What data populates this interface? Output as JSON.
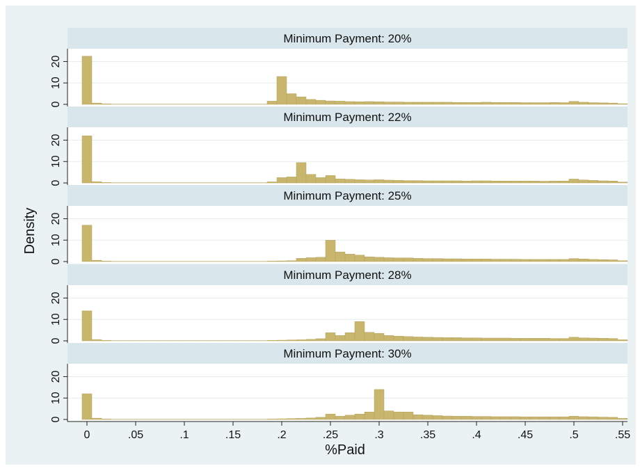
{
  "colors": {
    "outer_background": "#ffffff",
    "plot_region": "#eaf2f3",
    "panel_background": "#ffffff",
    "strip_background": "#d9e6eb",
    "bar_fill": "#c8b56e",
    "bar_stroke": "#b5a45e",
    "gridline": "#e6eded",
    "axis": "#222222",
    "text": "#111111"
  },
  "chart_data": {
    "type": "bar",
    "chart_subtype": "faceted histogram",
    "xlabel": "%Paid",
    "ylabel": "Density",
    "xlim": [
      -0.02,
      0.555
    ],
    "xticks": [
      0,
      0.05,
      0.1,
      0.15,
      0.2,
      0.25,
      0.3,
      0.35,
      0.4,
      0.45,
      0.5,
      0.55
    ],
    "xtick_labels": [
      "0",
      ".05",
      ".1",
      ".15",
      ".2",
      ".25",
      ".3",
      ".35",
      ".4",
      ".45",
      ".5",
      ".55"
    ],
    "ylim": [
      0,
      26
    ],
    "yticks": [
      0,
      10,
      20
    ],
    "ytick_labels": [
      "0",
      "10",
      "20"
    ],
    "grid": true,
    "bin_width": 0.01,
    "bin_start": -0.005,
    "panels": [
      {
        "label": "Minimum Payment: 20%",
        "values": [
          22.5,
          0.6,
          0.2,
          0.1,
          0.1,
          0.1,
          0.1,
          0.1,
          0.1,
          0.1,
          0.1,
          0.1,
          0.1,
          0.1,
          0.1,
          0.1,
          0.1,
          0.1,
          0.1,
          1.5,
          13.0,
          5.0,
          3.5,
          2.3,
          1.9,
          1.6,
          1.5,
          1.3,
          1.2,
          1.3,
          1.2,
          1.1,
          1.1,
          1.0,
          1.0,
          1.0,
          1.0,
          1.0,
          0.9,
          0.9,
          0.9,
          1.0,
          0.9,
          0.9,
          0.9,
          0.8,
          0.8,
          0.8,
          0.9,
          0.8,
          1.4,
          1.0,
          0.8,
          0.7,
          0.6,
          0.3
        ]
      },
      {
        "label": "Minimum Payment: 22%",
        "values": [
          22.0,
          0.6,
          0.2,
          0.1,
          0.1,
          0.1,
          0.1,
          0.1,
          0.1,
          0.1,
          0.1,
          0.1,
          0.1,
          0.1,
          0.1,
          0.1,
          0.1,
          0.1,
          0.1,
          0.5,
          2.5,
          2.8,
          9.5,
          4.0,
          2.5,
          3.5,
          1.9,
          1.7,
          1.5,
          1.4,
          1.5,
          1.3,
          1.2,
          1.1,
          1.1,
          1.0,
          1.0,
          1.0,
          1.0,
          0.9,
          1.0,
          1.0,
          0.9,
          0.9,
          0.9,
          0.9,
          0.9,
          0.8,
          0.9,
          0.9,
          1.8,
          1.4,
          1.2,
          1.0,
          0.9,
          0.4
        ]
      },
      {
        "label": "Minimum Payment: 25%",
        "values": [
          17.0,
          0.6,
          0.2,
          0.1,
          0.1,
          0.1,
          0.1,
          0.1,
          0.1,
          0.1,
          0.1,
          0.1,
          0.1,
          0.1,
          0.1,
          0.1,
          0.1,
          0.1,
          0.1,
          0.2,
          0.3,
          0.4,
          1.5,
          1.8,
          2.0,
          10.0,
          4.5,
          3.5,
          3.0,
          2.2,
          2.0,
          1.8,
          1.7,
          1.7,
          1.5,
          1.4,
          1.4,
          1.3,
          1.3,
          1.2,
          1.2,
          1.2,
          1.1,
          1.1,
          1.1,
          1.0,
          1.0,
          1.0,
          1.0,
          1.0,
          1.4,
          1.2,
          1.0,
          0.9,
          0.8,
          0.4
        ]
      },
      {
        "label": "Minimum Payment: 28%",
        "values": [
          14.0,
          0.6,
          0.2,
          0.1,
          0.1,
          0.1,
          0.1,
          0.1,
          0.1,
          0.1,
          0.1,
          0.1,
          0.1,
          0.1,
          0.1,
          0.1,
          0.1,
          0.1,
          0.1,
          0.2,
          0.3,
          0.4,
          0.5,
          0.7,
          1.0,
          3.8,
          2.5,
          3.8,
          9.0,
          4.0,
          3.5,
          2.5,
          2.2,
          2.0,
          1.8,
          1.7,
          1.6,
          1.5,
          1.5,
          1.4,
          1.4,
          1.3,
          1.3,
          1.3,
          1.2,
          1.2,
          1.2,
          1.2,
          1.1,
          1.1,
          1.7,
          1.4,
          1.3,
          1.2,
          1.1,
          0.5
        ]
      },
      {
        "label": "Minimum Payment: 30%",
        "values": [
          12.0,
          0.6,
          0.2,
          0.1,
          0.1,
          0.1,
          0.1,
          0.1,
          0.1,
          0.1,
          0.1,
          0.1,
          0.1,
          0.1,
          0.1,
          0.1,
          0.1,
          0.1,
          0.1,
          0.2,
          0.3,
          0.4,
          0.5,
          0.7,
          1.0,
          2.5,
          1.5,
          2.0,
          2.5,
          3.5,
          14.0,
          4.0,
          3.5,
          3.5,
          2.2,
          2.0,
          1.8,
          1.6,
          1.5,
          1.5,
          1.4,
          1.4,
          1.3,
          1.3,
          1.3,
          1.2,
          1.2,
          1.2,
          1.2,
          1.2,
          1.5,
          1.3,
          1.2,
          1.1,
          1.0,
          0.5
        ]
      }
    ]
  }
}
